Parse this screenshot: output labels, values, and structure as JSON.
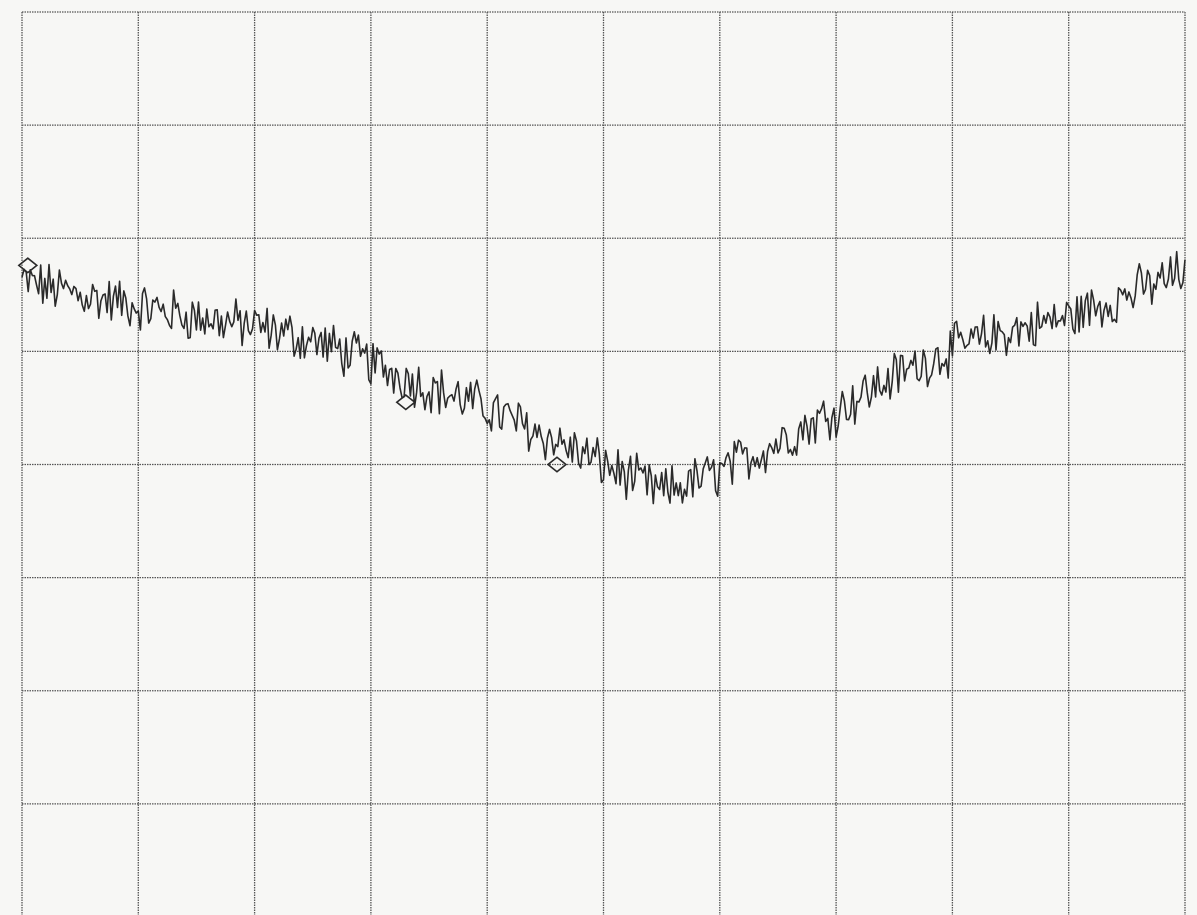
{
  "chart_data": {
    "type": "line",
    "grid": true,
    "grid_divisions": {
      "x": 10,
      "y": 8
    },
    "xlim": [
      0,
      10
    ],
    "ylim": [
      0,
      8
    ],
    "colors": {
      "trace": "#2a2a2a",
      "grid": "#555555",
      "background": "#f7f7f5"
    },
    "series": [
      {
        "values_x": [
          0.0,
          0.5,
          1.0,
          1.5,
          2.0,
          2.5,
          3.0,
          3.5,
          4.0,
          4.5,
          5.0,
          5.5,
          6.0,
          6.5,
          7.0,
          7.5,
          8.0,
          8.5,
          9.0,
          9.5,
          10.0
        ],
        "values_y": [
          5.62,
          5.5,
          5.4,
          5.3,
          5.22,
          5.1,
          4.9,
          4.68,
          4.5,
          4.25,
          4.0,
          3.75,
          3.93,
          4.2,
          4.48,
          4.78,
          5.02,
          5.18,
          5.3,
          5.5,
          5.7
        ]
      }
    ],
    "markers": [
      {
        "x": 0.05,
        "y": 5.76
      },
      {
        "x": 3.3,
        "y": 4.55
      },
      {
        "x": 4.6,
        "y": 4.0
      }
    ]
  }
}
